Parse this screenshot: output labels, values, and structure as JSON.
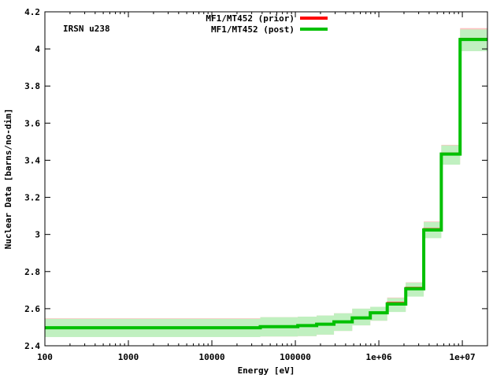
{
  "chart_data": {
    "type": "line",
    "style": "step-with-uncertainty-band",
    "annotation": "IRSN u238",
    "xlabel": "Energy [eV]",
    "ylabel": "Nuclear Data [barns/no-dim]",
    "xscale": "log",
    "xlim": [
      100,
      20000000
    ],
    "ylim": [
      2.4,
      4.2
    ],
    "xticks": [
      100,
      1000,
      10000,
      100000,
      1000000,
      10000000
    ],
    "xtick_labels": [
      "100",
      "1000",
      "10000",
      "100000",
      "1e+06",
      "1e+07"
    ],
    "yticks": [
      2.4,
      2.6,
      2.8,
      3,
      3.2,
      3.4,
      3.6,
      3.8,
      4,
      4.2
    ],
    "ytick_labels": [
      "2.4",
      "2.6",
      "2.8",
      "3",
      "3.2",
      "3.4",
      "3.6",
      "3.8",
      "4",
      "4.2"
    ],
    "legend_position": "top-center",
    "bin_edges": [
      100,
      38000,
      107000,
      180000,
      290000,
      480000,
      790000,
      1260000,
      2100000,
      3450000,
      5600000,
      9400000,
      20000000
    ],
    "series": [
      {
        "name": "MF1/MT452 (prior)",
        "color": "#ff0000",
        "values": [
          2.5,
          2.503,
          2.509,
          2.516,
          2.529,
          2.55,
          2.578,
          2.632,
          2.713,
          3.03,
          3.437,
          4.055
        ],
        "band_upper": [
          2.548,
          2.554,
          2.557,
          2.563,
          2.575,
          2.6,
          2.61,
          2.66,
          2.742,
          3.07,
          3.483,
          4.112
        ],
        "band_lower": [
          2.45,
          2.45,
          2.452,
          2.46,
          2.48,
          2.51,
          2.535,
          2.585,
          2.668,
          2.985,
          3.38,
          3.99
        ],
        "band_color": "#ffc0c0"
      },
      {
        "name": "MF1/MT452 (post)",
        "color": "#00c000",
        "values": [
          2.497,
          2.503,
          2.509,
          2.516,
          2.529,
          2.55,
          2.578,
          2.625,
          2.707,
          3.024,
          3.433,
          4.051
        ],
        "band_upper": [
          2.545,
          2.554,
          2.557,
          2.563,
          2.575,
          2.6,
          2.61,
          2.657,
          2.74,
          3.067,
          3.48,
          4.105
        ],
        "band_lower": [
          2.447,
          2.45,
          2.452,
          2.46,
          2.48,
          2.51,
          2.535,
          2.582,
          2.665,
          2.98,
          3.376,
          3.988
        ],
        "band_color": "#c0f0c0"
      }
    ]
  }
}
